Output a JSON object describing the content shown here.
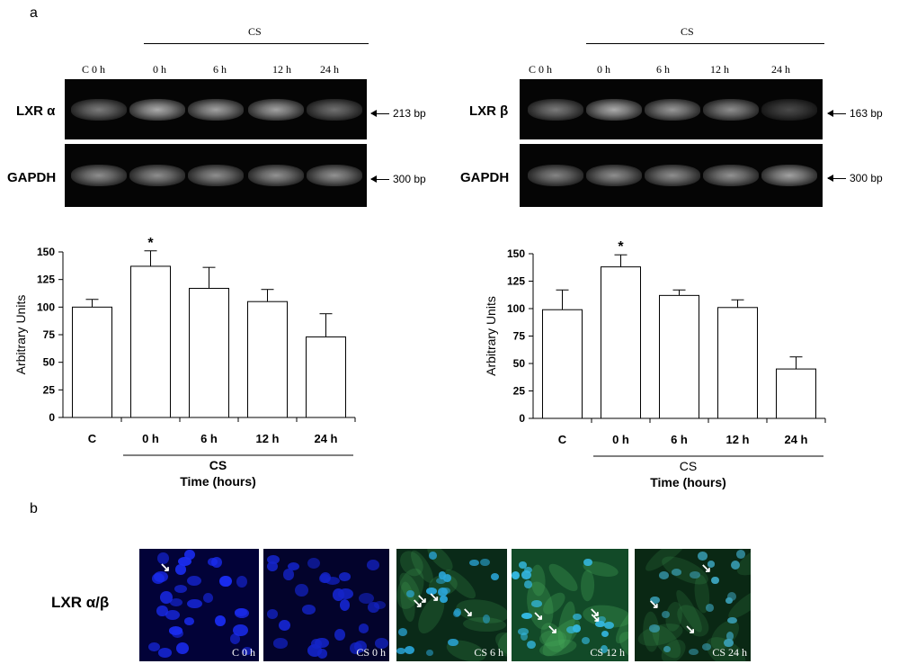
{
  "figure": {
    "panel_a": "a",
    "panel_b": "b"
  },
  "gel_left": {
    "cs_header": "CS",
    "lane_labels": [
      "C  0 h",
      "0 h",
      "6 h",
      "12 h",
      "24 h"
    ],
    "rows": [
      {
        "label": "LXR α",
        "bp": "213 bp",
        "intensities": [
          0.6,
          0.85,
          0.8,
          0.8,
          0.55
        ]
      },
      {
        "label": "GAPDH",
        "bp": "300 bp",
        "intensities": [
          0.7,
          0.7,
          0.7,
          0.72,
          0.72
        ]
      }
    ]
  },
  "gel_right": {
    "cs_header": "CS",
    "lane_labels": [
      "C  0 h",
      "0 h",
      "6 h",
      "12 h",
      "24 h"
    ],
    "rows": [
      {
        "label": "LXR β",
        "bp": "163 bp",
        "intensities": [
          0.6,
          0.85,
          0.75,
          0.7,
          0.35
        ]
      },
      {
        "label": "GAPDH",
        "bp": "300 bp",
        "intensities": [
          0.65,
          0.7,
          0.7,
          0.72,
          0.8
        ]
      }
    ]
  },
  "chart_data": [
    {
      "type": "bar",
      "title": "",
      "categories": [
        "C",
        "0 h",
        "6 h",
        "12 h",
        "24 h"
      ],
      "values": [
        100,
        137,
        117,
        105,
        73
      ],
      "errors": [
        7,
        14,
        19,
        11,
        21
      ],
      "significance": [
        "",
        "*",
        "",
        "",
        ""
      ],
      "ylabel": "Arbitrary Units",
      "xlabel_group": "CS",
      "xlabel": "Time (hours)",
      "ylim": [
        0,
        150
      ],
      "yticks": [
        0,
        25,
        50,
        75,
        100,
        125,
        150
      ],
      "grid": false,
      "bar_color": "#ffffff"
    },
    {
      "type": "bar",
      "title": "",
      "categories": [
        "C",
        "0 h",
        "6 h",
        "12 h",
        "24 h"
      ],
      "values": [
        99,
        138,
        112,
        101,
        45
      ],
      "errors": [
        18,
        11,
        5,
        7,
        11
      ],
      "significance": [
        "",
        "*",
        "",
        "",
        ""
      ],
      "ylabel": "Arbitrary Units",
      "xlabel_group": "CS",
      "xlabel": "Time (hours)",
      "ylim": [
        0,
        150
      ],
      "yticks": [
        0,
        25,
        50,
        75,
        100,
        125,
        150
      ],
      "grid": false,
      "bar_color": "#ffffff"
    }
  ],
  "microscopy": {
    "row_label": "LXR α/β",
    "panels": [
      {
        "caption": "C 0 h",
        "bg": "#020238",
        "nuclei": "#1a2cf0",
        "green": 0
      },
      {
        "caption": "CS 0 h",
        "bg": "#03032c",
        "nuclei": "#1424c8",
        "green": 0
      },
      {
        "caption": "CS 6 h",
        "bg": "#0a2a18",
        "nuclei": "#2aa6d8",
        "green": 0.6
      },
      {
        "caption": "CS 12 h",
        "bg": "#124a28",
        "nuclei": "#34b8e0",
        "green": 0.9
      },
      {
        "caption": "CS 24 h",
        "bg": "#0a2814",
        "nuclei": "#3aa0b8",
        "green": 0.5
      }
    ]
  }
}
